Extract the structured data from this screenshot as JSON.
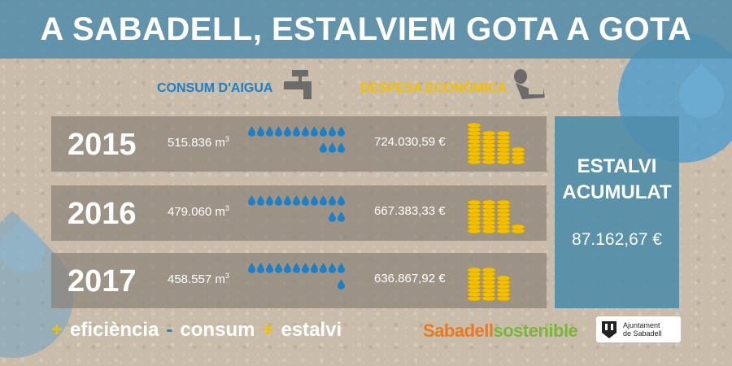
{
  "title": "A SABADELL, ESTALVIEM GOTA A GOTA",
  "headers": {
    "water": "CONSUM D'AIGUA",
    "money": "DESPESA ECONÒMICA"
  },
  "rows": [
    {
      "year": "2015",
      "volume": "515.836 m",
      "unit_sup": "3",
      "cost": "724.030,59 €",
      "drops": 14,
      "coin_stacks": [
        5,
        4,
        4,
        2
      ]
    },
    {
      "year": "2016",
      "volume": "479.060 m",
      "unit_sup": "3",
      "cost": "667.383,33 €",
      "drops": 13,
      "coin_stacks": [
        4,
        4,
        4,
        1
      ]
    },
    {
      "year": "2017",
      "volume": "458.557 m",
      "unit_sup": "3",
      "cost": "636.867,92 €",
      "drops": 12,
      "coin_stacks": [
        4,
        4,
        3,
        0
      ]
    }
  ],
  "accumulated": {
    "label_line1": "ESTALVI",
    "label_line2": "ACUMULAT",
    "value": "87.162,67 €"
  },
  "slogan": {
    "w1": "eficiència",
    "w2": "consum",
    "w3": "estalvi",
    "plus": "+",
    "minus": "-"
  },
  "brand": {
    "part1": "Sabadell",
    "part2": "sostenible"
  },
  "ajuntament": {
    "line1": "Ajuntament",
    "line2": "de Sabadell"
  },
  "colors": {
    "title_band": "#508caa",
    "water_blue": "#1f7fc4",
    "coin_gold": "#f2c000",
    "brand_orange": "#ea7a1f",
    "brand_green": "#7bb63b"
  },
  "icons": [
    "tap-icon",
    "hand-coin-icon",
    "drop-icon",
    "coin-stack-icon",
    "city-shield-icon"
  ]
}
